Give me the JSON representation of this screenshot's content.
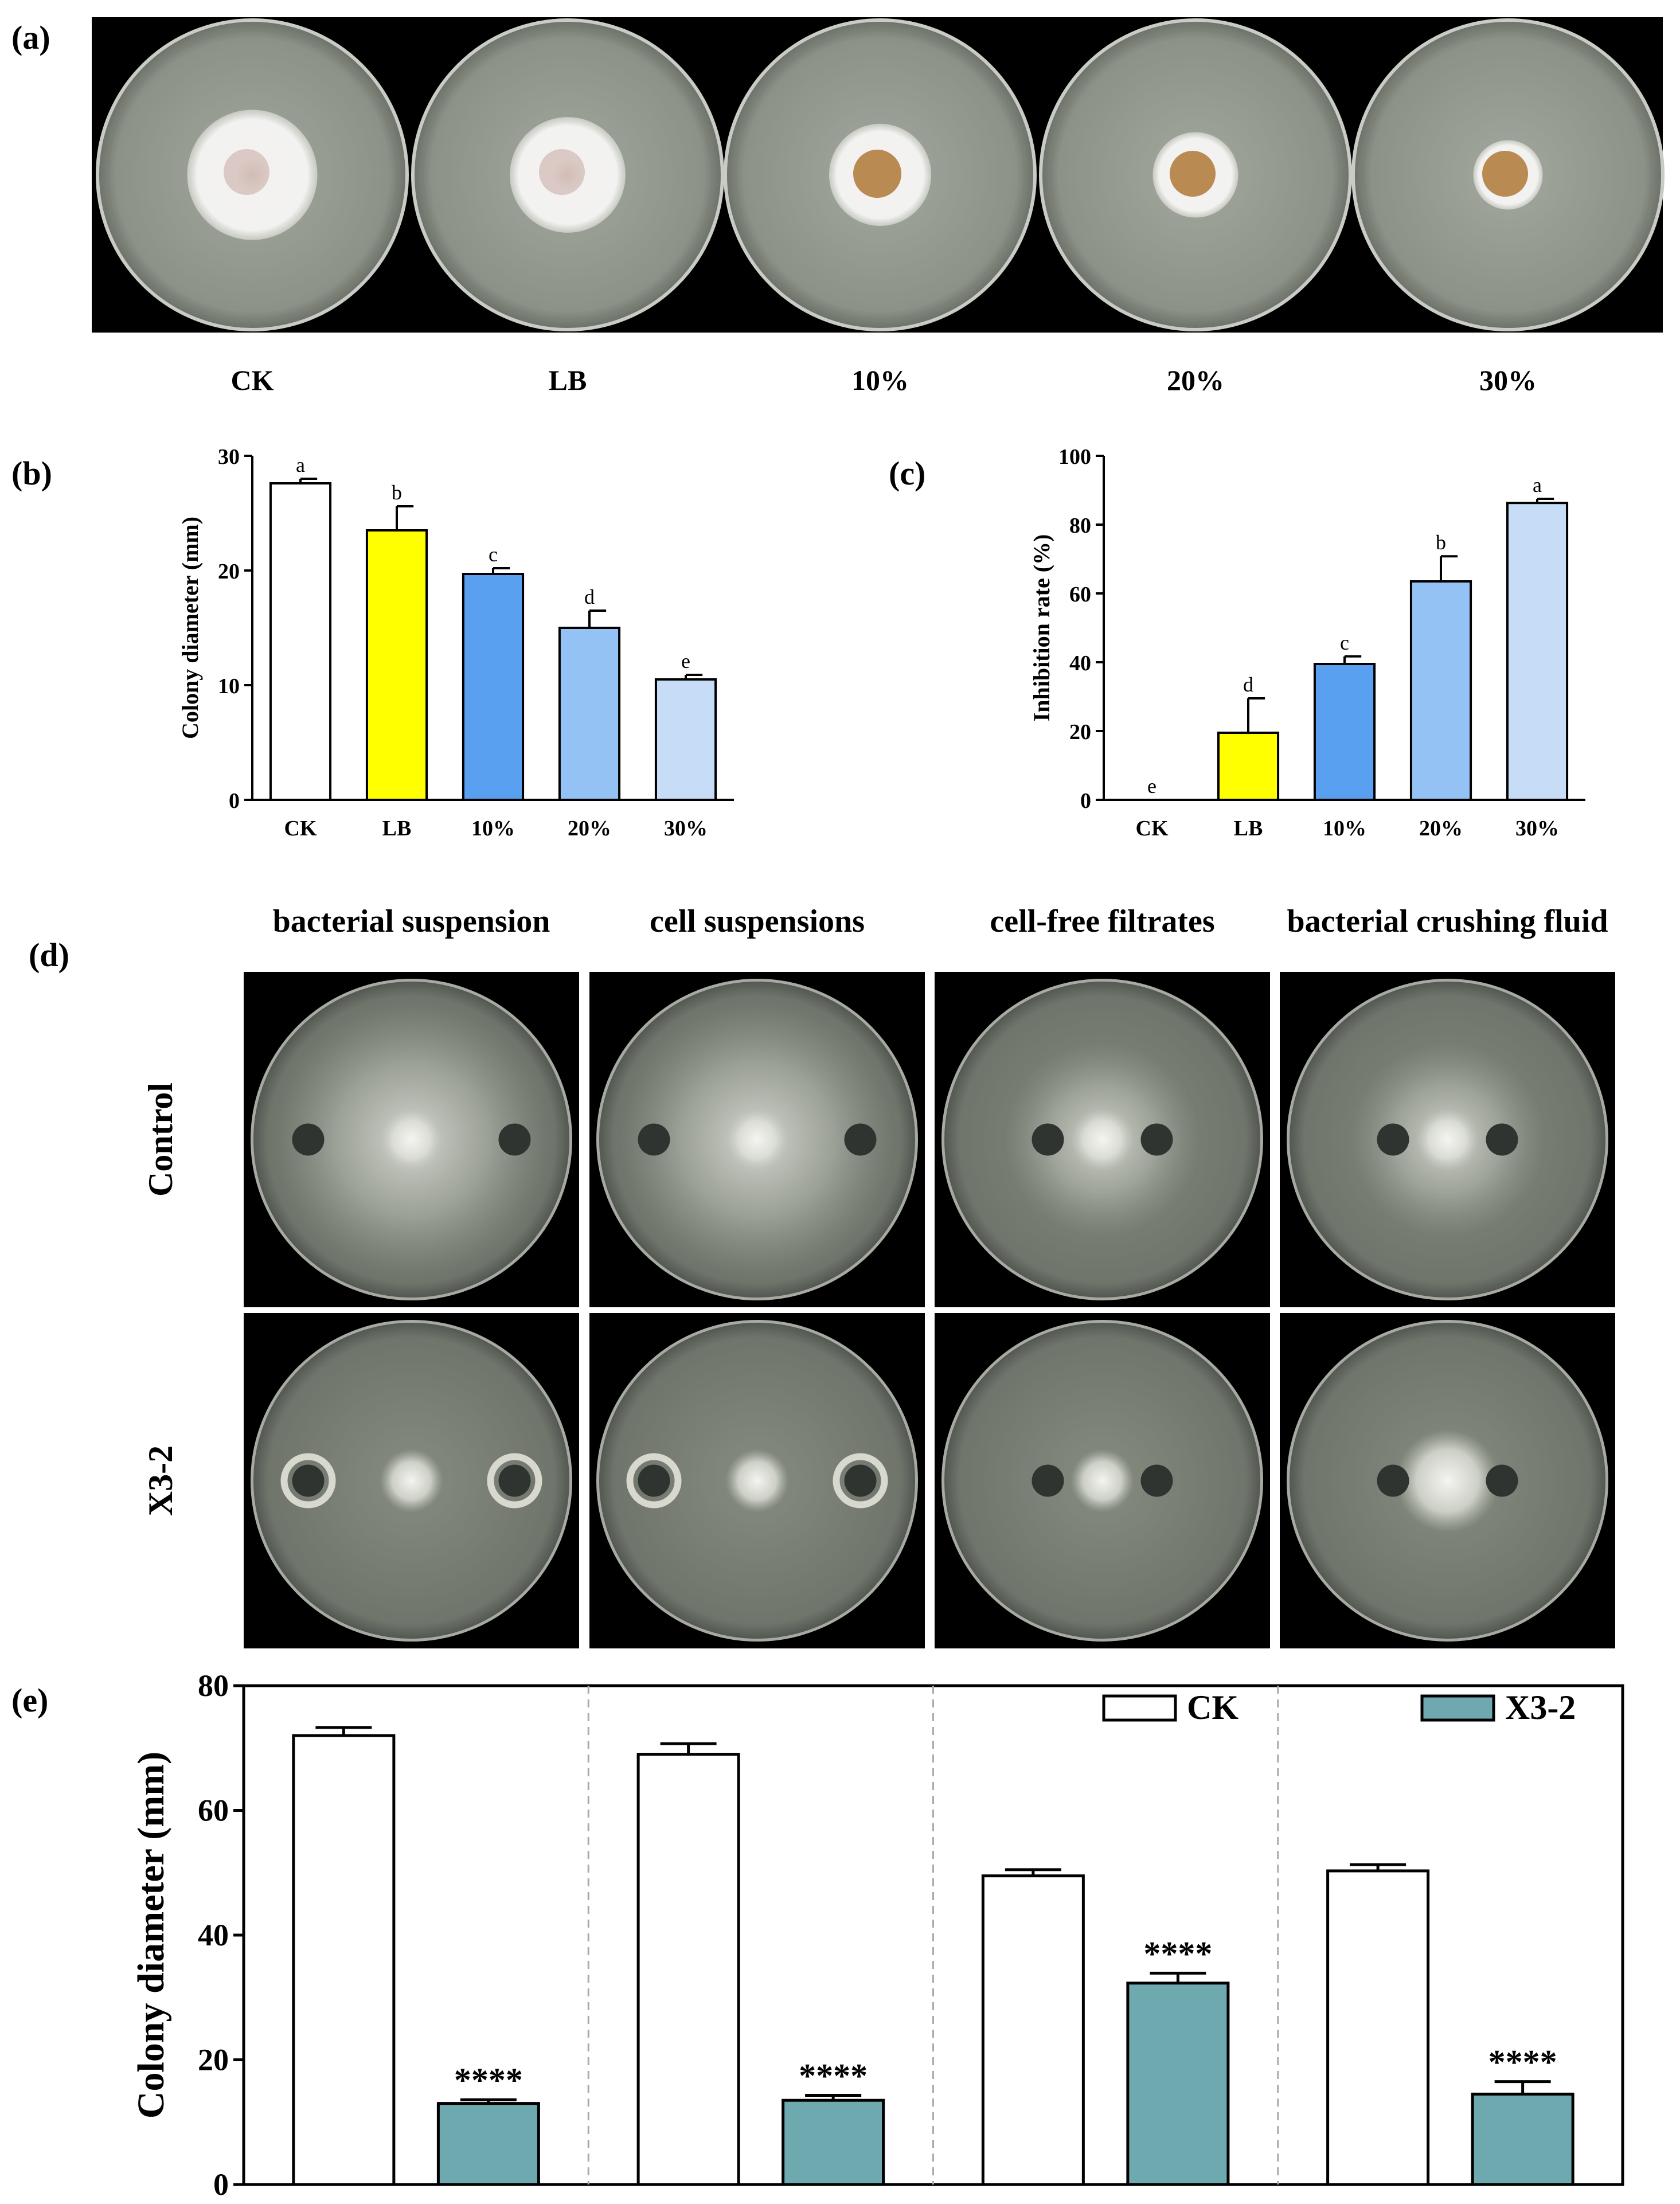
{
  "panels": {
    "a": {
      "label": "(a)",
      "plates": [
        {
          "label": "CK",
          "colony_diameter_mm": 27.6
        },
        {
          "label": "LB",
          "colony_diameter_mm": 23.5
        },
        {
          "label": "10%",
          "colony_diameter_mm": 19.7
        },
        {
          "label": "20%",
          "colony_diameter_mm": 15.0
        },
        {
          "label": "30%",
          "colony_diameter_mm": 10.5
        }
      ]
    },
    "b": {
      "label": "(b)"
    },
    "c": {
      "label": "(c)"
    },
    "d": {
      "label": "(d)",
      "columns": [
        "bacterial suspension",
        "cell suspensions",
        "cell-free filtrates",
        "bacterial crushing fluid"
      ],
      "rows": [
        "Control",
        "X3-2"
      ]
    },
    "e": {
      "label": "(e)"
    }
  },
  "colors": {
    "ck": "#ffffff",
    "lb": "#ffff00",
    "pct10": "#5aa0f0",
    "pct20": "#94c2f5",
    "pct30": "#c7ddf7",
    "x3_2": "#6ea9b0",
    "axis": "#000000",
    "photo_bg": "#000000",
    "plate_agar": "#8e948a",
    "mycelium": "#f1f1ef"
  },
  "chart_data": [
    {
      "panel": "b",
      "type": "bar",
      "categories": [
        "CK",
        "LB",
        "10%",
        "20%",
        "30%"
      ],
      "values": [
        27.6,
        23.5,
        19.7,
        15.0,
        10.5
      ],
      "errors": [
        0.4,
        2.1,
        0.5,
        1.5,
        0.4
      ],
      "significance": [
        "a",
        "b",
        "c",
        "d",
        "e"
      ],
      "ylabel": "Colony diameter (mm)",
      "ylim": [
        0,
        30
      ],
      "yticks": [
        0,
        10,
        20,
        30
      ],
      "grid": false,
      "bar_colors": [
        "#ffffff",
        "#ffff00",
        "#5aa0f0",
        "#94c2f5",
        "#c7ddf7"
      ]
    },
    {
      "panel": "c",
      "type": "bar",
      "categories": [
        "CK",
        "LB",
        "10%",
        "20%",
        "30%"
      ],
      "values": [
        0,
        19.5,
        39.5,
        63.5,
        86.3
      ],
      "errors": [
        0,
        10.0,
        2.2,
        7.3,
        1.2
      ],
      "significance": [
        "e",
        "d",
        "c",
        "b",
        "a"
      ],
      "ylabel": "Inhibition rate (%)",
      "ylim": [
        0,
        100
      ],
      "yticks": [
        0,
        20,
        40,
        60,
        80,
        100
      ],
      "grid": false,
      "bar_colors": [
        "#ffffff",
        "#ffff00",
        "#5aa0f0",
        "#94c2f5",
        "#c7ddf7"
      ]
    },
    {
      "panel": "e",
      "type": "bar",
      "groups": [
        "bacterial suspension",
        "cell suspensions",
        "cell-free filtrates",
        "bacterial crushing fluid"
      ],
      "series": [
        {
          "name": "CK",
          "values": [
            72.0,
            69.0,
            49.5,
            50.3
          ],
          "errors": [
            1.3,
            1.7,
            1.0,
            1.0
          ],
          "marks": [
            "",
            "",
            "",
            ""
          ]
        },
        {
          "name": "X3-2",
          "values": [
            13.0,
            13.5,
            32.3,
            14.5
          ],
          "errors": [
            0.6,
            0.8,
            1.6,
            2.0
          ],
          "marks": [
            "****",
            "****",
            "****",
            "****"
          ]
        }
      ],
      "ylabel": "Colony diameter (mm)",
      "ylim": [
        0,
        80
      ],
      "yticks": [
        0,
        20,
        40,
        60,
        80
      ],
      "legend": "top-right",
      "group_separators": "dashed",
      "grid": false
    }
  ]
}
